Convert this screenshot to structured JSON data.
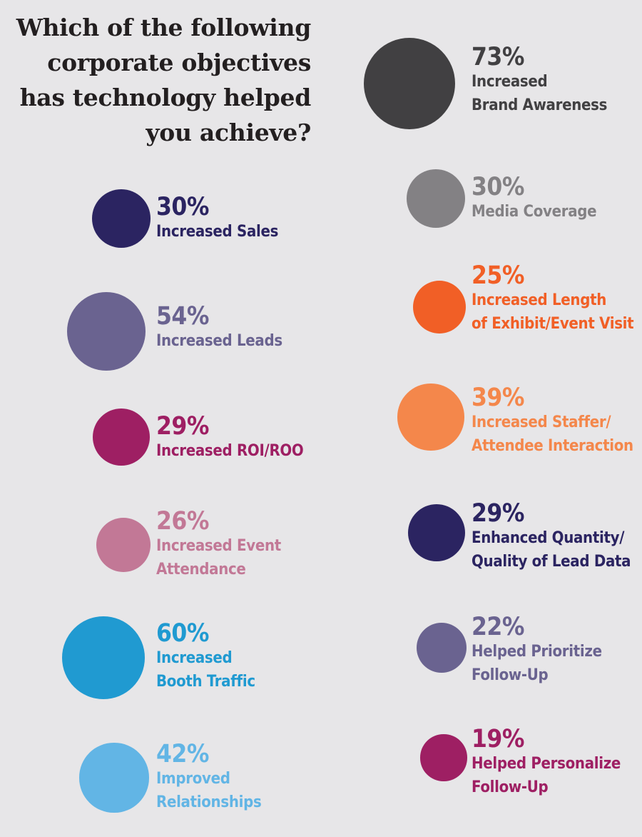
{
  "title": [
    "Which of the following",
    "corporate objectives",
    "has technology helped",
    "you achieve?"
  ],
  "chart_data": {
    "type": "bubble",
    "title": "Which of the following corporate objectives has technology helped you achieve?",
    "items": [
      {
        "value": 73,
        "percent": "73%",
        "label": [
          "Increased",
          "Brand Awareness"
        ],
        "color": "#414042"
      },
      {
        "value": 30,
        "percent": "30%",
        "label": [
          "Increased Sales"
        ],
        "color": "#2b2461"
      },
      {
        "value": 30,
        "percent": "30%",
        "label": [
          "Media Coverage"
        ],
        "color": "#838184"
      },
      {
        "value": 25,
        "percent": "25%",
        "label": [
          "Increased Length",
          "of Exhibit/Event Visit"
        ],
        "color": "#f15f26"
      },
      {
        "value": 54,
        "percent": "54%",
        "label": [
          "Increased Leads"
        ],
        "color": "#6a6390"
      },
      {
        "value": 39,
        "percent": "39%",
        "label": [
          "Increased Staffer/",
          "Attendee Interaction"
        ],
        "color": "#f4874b"
      },
      {
        "value": 29,
        "percent": "29%",
        "label": [
          "Increased ROI/ROO"
        ],
        "color": "#9e1f63"
      },
      {
        "value": 29,
        "percent": "29%",
        "label": [
          "Enhanced Quantity/",
          "Quality of Lead Data"
        ],
        "color": "#2b2461"
      },
      {
        "value": 26,
        "percent": "26%",
        "label": [
          "Increased Event",
          "Attendance"
        ],
        "color": "#c27896"
      },
      {
        "value": 60,
        "percent": "60%",
        "label": [
          "Increased",
          "Booth Traffic"
        ],
        "color": "#209ad1"
      },
      {
        "value": 22,
        "percent": "22%",
        "label": [
          "Helped Prioritize",
          "Follow-Up"
        ],
        "color": "#6a6390"
      },
      {
        "value": 42,
        "percent": "42%",
        "label": [
          "Improved",
          "Relationships"
        ],
        "color": "#62b5e5"
      },
      {
        "value": 19,
        "percent": "19%",
        "label": [
          "Helped Personalize",
          "Follow-Up"
        ],
        "color": "#9e1f63"
      }
    ]
  }
}
